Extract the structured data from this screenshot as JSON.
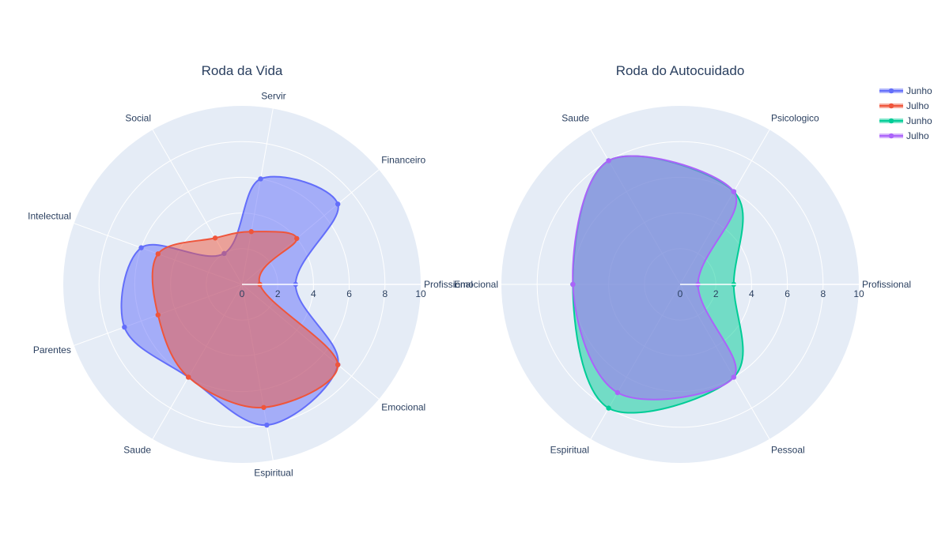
{
  "chart_data": [
    {
      "type": "radar",
      "title": "Roda da Vida",
      "radial_range": [
        0,
        10
      ],
      "radial_ticks": [
        "0",
        "2",
        "4",
        "6",
        "8",
        "10"
      ],
      "categories": [
        "Profissional",
        "Financeiro",
        "Servir",
        "Social",
        "Intelectual",
        "Parentes",
        "Saude",
        "Espiritual",
        "Emocional"
      ],
      "series": [
        {
          "name": "Junho",
          "color": "#636efa",
          "values": [
            3,
            7,
            6,
            2,
            6,
            7,
            6,
            8,
            7
          ]
        },
        {
          "name": "Julho",
          "color": "#ef553b",
          "values": [
            1,
            4,
            3,
            3,
            5,
            5,
            6,
            7,
            7
          ]
        }
      ]
    },
    {
      "type": "radar",
      "title": "Roda do Autocuidado",
      "radial_range": [
        0,
        10
      ],
      "radial_ticks": [
        "0",
        "2",
        "4",
        "6",
        "8",
        "10"
      ],
      "categories": [
        "Profissional",
        "Psicologico",
        "Saude",
        "Emocional",
        "Espiritual",
        "Pessoal"
      ],
      "series": [
        {
          "name": "Junho",
          "color": "#00cc96",
          "values": [
            3,
            6,
            8,
            6,
            8,
            6
          ]
        },
        {
          "name": "Julho",
          "color": "#ab63fa",
          "values": [
            1,
            6,
            8,
            6,
            7,
            6
          ]
        }
      ]
    }
  ],
  "legend": {
    "placement": "top-right",
    "items": [
      {
        "label": "Junho",
        "color": "#636efa"
      },
      {
        "label": "Julho",
        "color": "#ef553b"
      },
      {
        "label": "Junho",
        "color": "#00cc96"
      },
      {
        "label": "Julho",
        "color": "#ab63fa"
      }
    ]
  }
}
